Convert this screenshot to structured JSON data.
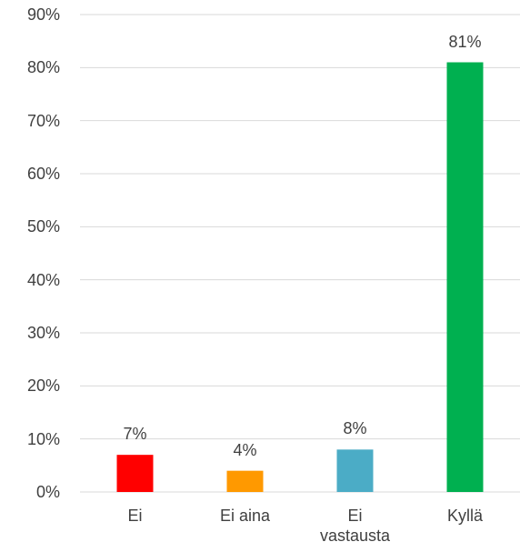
{
  "chart_data": {
    "type": "bar",
    "categories": [
      "Ei",
      "Ei aina",
      "Ei vastausta",
      "Kyllä"
    ],
    "values": [
      7,
      4,
      8,
      81
    ],
    "value_labels": [
      "7%",
      "4%",
      "8%",
      "81%"
    ],
    "colors": [
      "#ff0000",
      "#ff9900",
      "#4bacc6",
      "#00b050"
    ],
    "ylim": [
      0,
      90
    ],
    "yticks": [
      {
        "value": 0,
        "label": "0%"
      },
      {
        "value": 10,
        "label": "10%"
      },
      {
        "value": 20,
        "label": "20%"
      },
      {
        "value": 30,
        "label": "30%"
      },
      {
        "value": 40,
        "label": "40%"
      },
      {
        "value": 50,
        "label": "50%"
      },
      {
        "value": 60,
        "label": "60%"
      },
      {
        "value": 70,
        "label": "70%"
      },
      {
        "value": 80,
        "label": "80%"
      },
      {
        "value": 90,
        "label": "90%"
      }
    ],
    "grid": true
  }
}
